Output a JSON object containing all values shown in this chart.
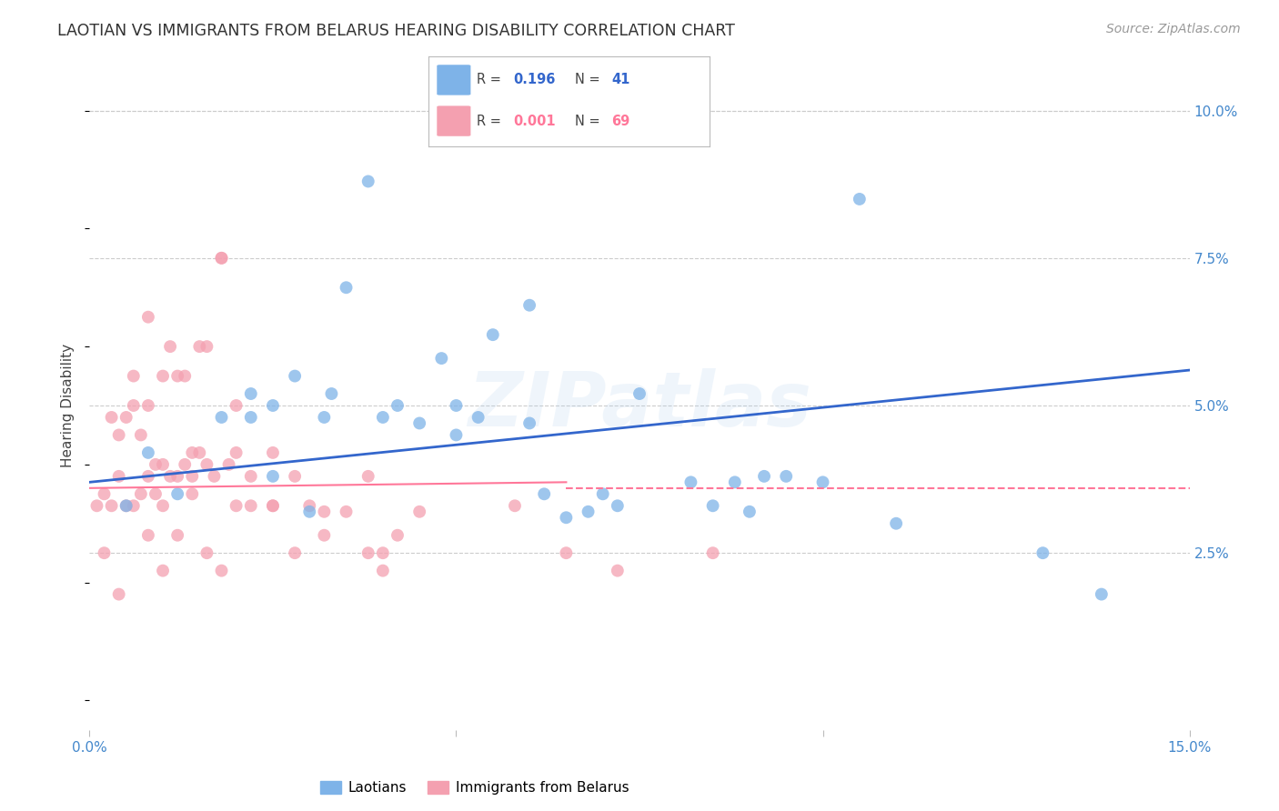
{
  "title": "LAOTIAN VS IMMIGRANTS FROM BELARUS HEARING DISABILITY CORRELATION CHART",
  "source": "Source: ZipAtlas.com",
  "ylabel": "Hearing Disability",
  "xlabel": "",
  "xlim": [
    0.0,
    0.15
  ],
  "ylim": [
    -0.005,
    0.105
  ],
  "yticks": [
    0.025,
    0.05,
    0.075,
    0.1
  ],
  "yticklabels": [
    "2.5%",
    "5.0%",
    "7.5%",
    "10.0%"
  ],
  "xtick_positions": [
    0.0,
    0.05,
    0.1,
    0.15
  ],
  "xticklabels": [
    "0.0%",
    "",
    "",
    "15.0%"
  ],
  "blue_color": "#7EB3E8",
  "pink_color": "#F4A0B0",
  "blue_line_color": "#3366CC",
  "pink_line_color": "#FF7799",
  "legend1": "Laotians",
  "legend2": "Immigrants from Belarus",
  "blue_R": "0.196",
  "blue_N": "41",
  "pink_R": "0.001",
  "pink_N": "69",
  "blue_scatter_x": [
    0.005,
    0.018,
    0.022,
    0.022,
    0.028,
    0.03,
    0.032,
    0.035,
    0.038,
    0.04,
    0.042,
    0.045,
    0.048,
    0.05,
    0.05,
    0.053,
    0.055,
    0.06,
    0.062,
    0.065,
    0.068,
    0.07,
    0.072,
    0.075,
    0.082,
    0.085,
    0.088,
    0.09,
    0.092,
    0.095,
    0.1,
    0.105,
    0.11,
    0.13,
    0.138,
    0.008,
    0.012,
    0.025,
    0.025,
    0.033,
    0.06
  ],
  "blue_scatter_y": [
    0.033,
    0.048,
    0.048,
    0.052,
    0.055,
    0.032,
    0.048,
    0.07,
    0.088,
    0.048,
    0.05,
    0.047,
    0.058,
    0.045,
    0.05,
    0.048,
    0.062,
    0.047,
    0.035,
    0.031,
    0.032,
    0.035,
    0.033,
    0.052,
    0.037,
    0.033,
    0.037,
    0.032,
    0.038,
    0.038,
    0.037,
    0.085,
    0.03,
    0.025,
    0.018,
    0.042,
    0.035,
    0.05,
    0.038,
    0.052,
    0.067
  ],
  "pink_scatter_x": [
    0.001,
    0.002,
    0.003,
    0.003,
    0.004,
    0.004,
    0.005,
    0.005,
    0.006,
    0.006,
    0.007,
    0.007,
    0.008,
    0.008,
    0.008,
    0.009,
    0.009,
    0.01,
    0.01,
    0.01,
    0.011,
    0.011,
    0.012,
    0.012,
    0.013,
    0.013,
    0.014,
    0.014,
    0.015,
    0.015,
    0.016,
    0.016,
    0.017,
    0.018,
    0.018,
    0.019,
    0.02,
    0.02,
    0.022,
    0.022,
    0.025,
    0.025,
    0.028,
    0.03,
    0.032,
    0.035,
    0.038,
    0.04,
    0.042,
    0.045,
    0.002,
    0.004,
    0.006,
    0.008,
    0.01,
    0.012,
    0.014,
    0.016,
    0.018,
    0.02,
    0.025,
    0.028,
    0.032,
    0.038,
    0.04,
    0.058,
    0.065,
    0.072,
    0.085
  ],
  "pink_scatter_y": [
    0.033,
    0.035,
    0.033,
    0.048,
    0.038,
    0.045,
    0.033,
    0.048,
    0.033,
    0.05,
    0.035,
    0.045,
    0.038,
    0.05,
    0.065,
    0.035,
    0.04,
    0.033,
    0.04,
    0.055,
    0.038,
    0.06,
    0.038,
    0.055,
    0.04,
    0.055,
    0.038,
    0.042,
    0.042,
    0.06,
    0.04,
    0.06,
    0.038,
    0.075,
    0.075,
    0.04,
    0.042,
    0.05,
    0.033,
    0.038,
    0.033,
    0.042,
    0.025,
    0.033,
    0.028,
    0.032,
    0.025,
    0.022,
    0.028,
    0.032,
    0.025,
    0.018,
    0.055,
    0.028,
    0.022,
    0.028,
    0.035,
    0.025,
    0.022,
    0.033,
    0.033,
    0.038,
    0.032,
    0.038,
    0.025,
    0.033,
    0.025,
    0.022,
    0.025
  ],
  "blue_trend_x0": 0.0,
  "blue_trend_x1": 0.15,
  "blue_trend_y0": 0.037,
  "blue_trend_y1": 0.056,
  "pink_trend_x0": 0.0,
  "pink_trend_x1": 0.065,
  "pink_trend_y0": 0.036,
  "pink_trend_y1": 0.037,
  "pink_hline_x0": 0.065,
  "pink_hline_x1": 0.15,
  "pink_hline_y": 0.036,
  "background_color": "#FFFFFF",
  "grid_color": "#CCCCCC",
  "tick_color": "#4488CC",
  "title_color": "#333333",
  "title_fontsize": 12.5,
  "axis_label_fontsize": 11,
  "tick_fontsize": 11,
  "source_fontsize": 10,
  "scatter_size": 100,
  "scatter_alpha": 0.75,
  "watermark_text": "ZIPatlas",
  "watermark_color": "#AACCEE",
  "watermark_alpha": 0.18,
  "watermark_fontsize": 60
}
